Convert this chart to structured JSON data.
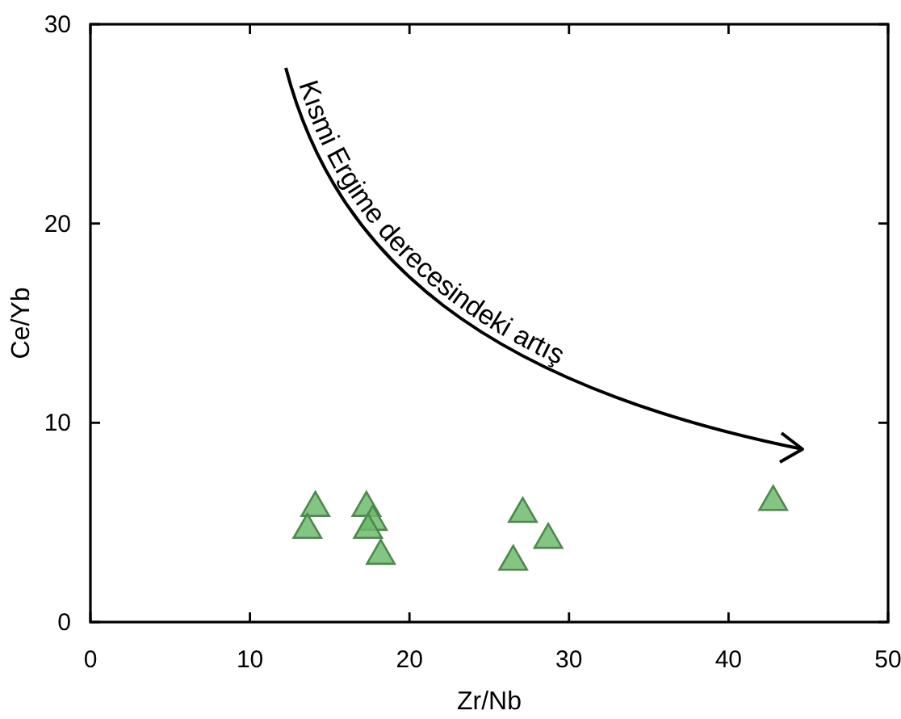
{
  "chart_data": {
    "type": "scatter",
    "xlabel": "Zr/Nb",
    "ylabel": "Ce/Yb",
    "x": [
      14.1,
      13.6,
      17.3,
      17.7,
      17.4,
      18.2,
      27.1,
      28.7,
      26.5,
      42.8
    ],
    "values": [
      5.8,
      4.7,
      5.8,
      5.1,
      4.7,
      3.4,
      5.5,
      4.2,
      3.1,
      6.1
    ],
    "color": "#6dbb6d",
    "marker": "triangle",
    "xlim": [
      0,
      50
    ],
    "xticks": [
      0,
      10,
      20,
      30,
      40,
      50
    ],
    "ylim": [
      0,
      30
    ],
    "yticks": [
      0,
      10,
      20,
      30
    ],
    "grid": false,
    "annotations": [
      "Kısmi Ergime derecesindeki artış"
    ]
  }
}
